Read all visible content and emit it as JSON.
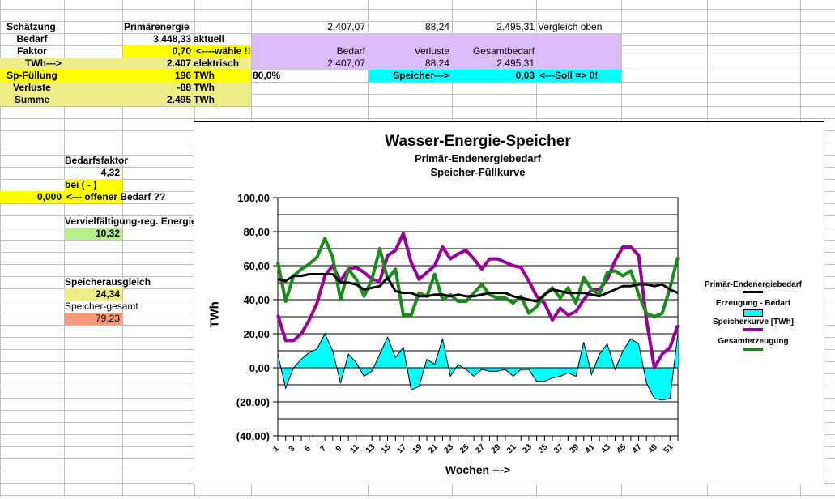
{
  "sheet": {
    "left_block": {
      "schaetzung_label": "Schätzung",
      "primaerenergie_label": "Primärenergie",
      "bedarf_label": "Bedarf",
      "bedarf_value": "3.448,33",
      "bedarf_note": "aktuell",
      "faktor_label": "Faktor",
      "faktor_value": "0,70",
      "faktor_note": "<----wähle !!",
      "twh_label": "TWh--->",
      "twh_value": "2.407",
      "twh_note": "elektrisch",
      "spfuellung_label": "Sp-Füllung",
      "spfuellung_value": "196",
      "spfuellung_unit": "TWh",
      "spfuellung_percent": "80,0%",
      "verluste_label": "Verluste",
      "verluste_value": "-88",
      "verluste_unit": "TWh",
      "summe_label": "Summe",
      "summe_value": "2.495",
      "summe_unit": "TWh"
    },
    "right_block": {
      "top_bedarf": "2.407,07",
      "top_verluste": "88,24",
      "top_gesamt": "2.495,31",
      "top_note": "Vergleich oben",
      "hdr_bedarf": "Bedarf",
      "hdr_verluste": "Verluste",
      "hdr_gesamt": "Gesamtbedarf",
      "val_bedarf": "2.407,07",
      "val_verluste": "88,24",
      "val_gesamt": "2.495,31",
      "speicher_label": "Speicher--->",
      "speicher_value": "0,03",
      "speicher_note": "<---Soll => 0!"
    },
    "side_block": {
      "bedarfsfaktor_label": "Bedarfsfaktor",
      "bedarfsfaktor_value": "4,32",
      "bei_label": "bei ( - )",
      "offen_value": "0,000",
      "offen_note": "<--- offener Bedarf ??",
      "vervielf_label": "Vervielfältigung-reg. Energie",
      "vervielf_value": "10,32",
      "ausgleich_label": "Speicherausgleich",
      "ausgleich_value": "24,34",
      "gesamt_label": "Speicher-gesamt",
      "gesamt_value": "79,23"
    }
  },
  "colors": {
    "yellow": "#ffff00",
    "pale_yellow": "#eeee88",
    "lavender": "#dcbcf8",
    "cyan": "#00ffff",
    "light_green": "#b6f08a",
    "salmon": "#f49a78",
    "black_series": "#000000",
    "cyan_series": "#00ffff",
    "purple_series": "#990099",
    "green_series": "#1a8c1a"
  },
  "chart_data": {
    "type": "line",
    "title": "Wasser-Energie-Speicher",
    "subtitle_1": "Primär-Endenergiebedarf",
    "subtitle_2": "Speicher-Füllkurve",
    "xlabel": "Wochen --->",
    "ylabel": "TWh",
    "ylim": [
      -40,
      100
    ],
    "y_ticks": [
      "(40,00)",
      "(20,00)",
      "0,00",
      "20,00",
      "40,00",
      "60,00",
      "80,00",
      "100,00"
    ],
    "y_tick_values": [
      -40,
      -20,
      0,
      20,
      40,
      60,
      80,
      100
    ],
    "grid": true,
    "legend_position": "right",
    "x": [
      1,
      2,
      3,
      4,
      5,
      6,
      7,
      8,
      9,
      10,
      11,
      12,
      13,
      14,
      15,
      16,
      17,
      18,
      19,
      20,
      21,
      22,
      23,
      24,
      25,
      26,
      27,
      28,
      29,
      30,
      31,
      32,
      33,
      34,
      35,
      36,
      37,
      38,
      39,
      40,
      41,
      42,
      43,
      44,
      45,
      46,
      47,
      48,
      49,
      50,
      51,
      52
    ],
    "x_tick_labels": [
      "1",
      "3",
      "5",
      "7",
      "9",
      "11",
      "13",
      "15",
      "17",
      "19",
      "21",
      "23",
      "25",
      "27",
      "29",
      "31",
      "33",
      "35",
      "37",
      "39",
      "41",
      "43",
      "45",
      "47",
      "49",
      "51"
    ],
    "series": [
      {
        "name": "Primär-Endenergiebedarf",
        "kind": "line",
        "values": [
          52,
          51,
          54,
          54,
          55,
          55,
          55,
          55,
          50,
          50,
          49,
          46,
          47,
          48,
          53,
          45,
          44,
          44,
          42,
          42,
          43,
          43,
          42,
          43,
          42,
          42,
          43,
          44,
          44,
          44,
          42,
          41,
          40,
          39,
          43,
          46,
          45,
          44,
          44,
          44,
          43,
          42,
          44,
          46,
          48,
          48,
          49,
          49,
          48,
          49,
          46,
          44
        ]
      },
      {
        "name": "Erzeugung - Bedarf",
        "kind": "area",
        "values": [
          8,
          -12,
          0,
          5,
          9,
          11,
          20,
          10,
          -9,
          8,
          3,
          -5,
          -2,
          8,
          18,
          6,
          12,
          -13,
          -11,
          5,
          2,
          17,
          -5,
          2,
          -1,
          -5,
          -1,
          -2,
          -2,
          -1,
          -5,
          -1,
          -1,
          -8,
          -8,
          -6,
          -5,
          -3,
          -5,
          15,
          -4,
          8,
          14,
          -1,
          10,
          17,
          14,
          -9,
          -18,
          -19,
          -18,
          20
        ]
      },
      {
        "name": "Speicherkurve [TWh]",
        "kind": "line",
        "values": [
          31,
          16,
          16,
          20,
          28,
          38,
          54,
          60,
          51,
          58,
          59,
          56,
          52,
          51,
          66,
          69,
          79,
          62,
          52,
          56,
          60,
          71,
          64,
          67,
          69,
          64,
          58,
          64,
          64,
          62,
          60,
          59,
          51,
          42,
          38,
          28,
          35,
          31,
          33,
          40,
          46,
          46,
          52,
          63,
          71,
          71,
          66,
          28,
          0,
          8,
          12,
          25
        ]
      },
      {
        "name": "Gesamterzeugung",
        "kind": "line",
        "values": [
          62,
          39,
          54,
          58,
          61,
          65,
          76,
          65,
          40,
          58,
          52,
          42,
          52,
          70,
          52,
          58,
          31,
          31,
          44,
          42,
          55,
          40,
          43,
          39,
          39,
          44,
          49,
          43,
          41,
          41,
          38,
          42,
          32,
          36,
          43,
          47,
          41,
          47,
          38,
          53,
          46,
          43,
          56,
          57,
          54,
          57,
          43,
          32,
          30,
          32,
          47,
          65
        ]
      }
    ]
  }
}
